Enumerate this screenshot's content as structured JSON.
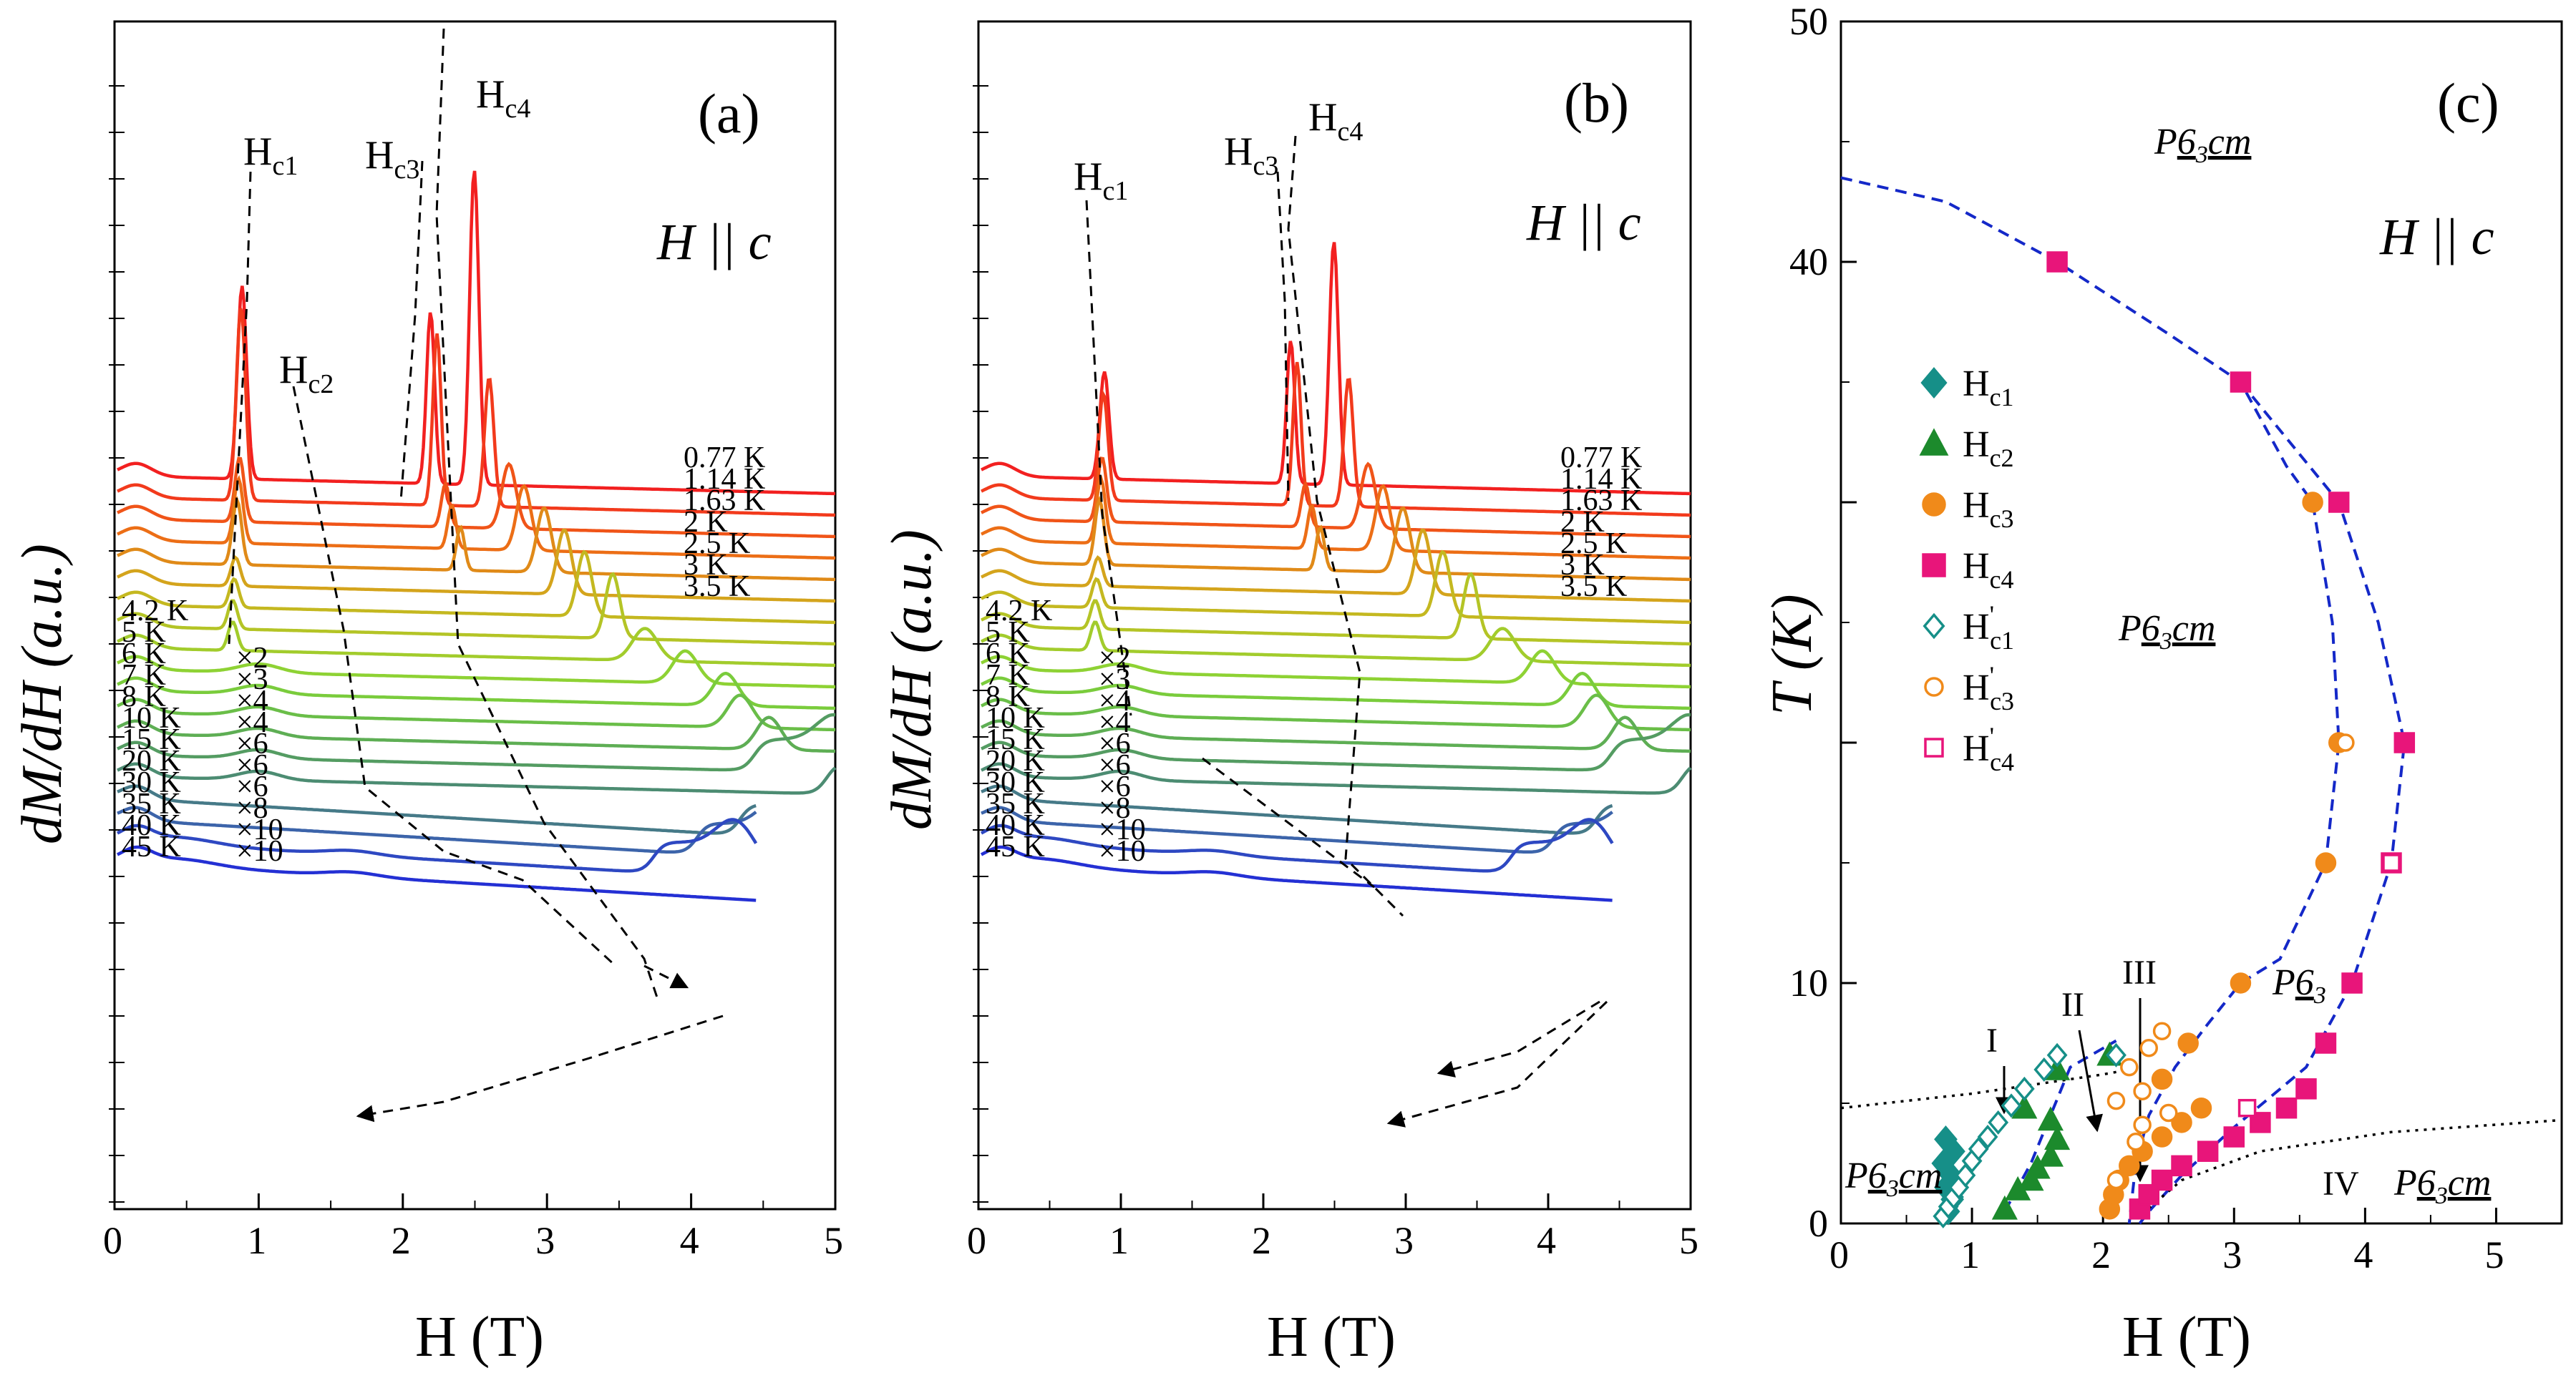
{
  "chart_data": [
    {
      "panel": "(a)",
      "type": "line",
      "title": "",
      "xlabel": "H (T)",
      "ylabel": "dM/dH (a.u.)",
      "xlim": [
        0,
        5
      ],
      "xticks": [
        "0",
        "1",
        "2",
        "3",
        "4",
        "5"
      ],
      "orientation_label": "H || c",
      "transition_labels": [
        "Hc1",
        "Hc2",
        "Hc3",
        "Hc4"
      ],
      "series": [
        {
          "name": "0.77 K",
          "multiplier": "",
          "color": "#f22020"
        },
        {
          "name": "1.14 K",
          "multiplier": "",
          "color": "#f23a1c"
        },
        {
          "name": "1.63 K",
          "multiplier": "",
          "color": "#f05418"
        },
        {
          "name": "2 K",
          "multiplier": "",
          "color": "#ec6e16"
        },
        {
          "name": "2.5 K",
          "multiplier": "",
          "color": "#e08a18"
        },
        {
          "name": "3 K",
          "multiplier": "",
          "color": "#d4a41c"
        },
        {
          "name": "3.5 K",
          "multiplier": "",
          "color": "#c4b820"
        },
        {
          "name": "4.2 K",
          "multiplier": "",
          "color": "#b4c426"
        },
        {
          "name": "5 K",
          "multiplier": "",
          "color": "#a2cc2c"
        },
        {
          "name": "6 K",
          "multiplier": "×2",
          "color": "#8ed234"
        },
        {
          "name": "7 K",
          "multiplier": "×3",
          "color": "#7acc3c"
        },
        {
          "name": "8 K",
          "multiplier": "×4",
          "color": "#6abe48"
        },
        {
          "name": "10 K",
          "multiplier": "×4",
          "color": "#5eae54"
        },
        {
          "name": "15 K",
          "multiplier": "×6",
          "color": "#549c62"
        },
        {
          "name": "20 K",
          "multiplier": "×6",
          "color": "#4c8c72"
        },
        {
          "name": "30 K",
          "multiplier": "×6",
          "color": "#467a88"
        },
        {
          "name": "35 K",
          "multiplier": "×8",
          "color": "#3c64aa"
        },
        {
          "name": "40 K",
          "multiplier": "×10",
          "color": "#2e48c2"
        },
        {
          "name": "45 K",
          "multiplier": "×10",
          "color": "#2430d4"
        }
      ]
    },
    {
      "panel": "(b)",
      "type": "line",
      "title": "",
      "xlabel": "H (T)",
      "ylabel": "dM/dH (a.u.)",
      "xlim": [
        0,
        5
      ],
      "xticks": [
        "0",
        "1",
        "2",
        "3",
        "4",
        "5"
      ],
      "orientation_label": "H || c",
      "transition_labels": [
        "Hc1",
        "Hc3",
        "Hc4"
      ],
      "series": [
        {
          "name": "0.77 K",
          "multiplier": "",
          "color": "#f22020"
        },
        {
          "name": "1.14 K",
          "multiplier": "",
          "color": "#f23a1c"
        },
        {
          "name": "1.63 K",
          "multiplier": "",
          "color": "#f05418"
        },
        {
          "name": "2 K",
          "multiplier": "",
          "color": "#ec6e16"
        },
        {
          "name": "2.5 K",
          "multiplier": "",
          "color": "#e08a18"
        },
        {
          "name": "3 K",
          "multiplier": "",
          "color": "#d4a41c"
        },
        {
          "name": "3.5 K",
          "multiplier": "",
          "color": "#c4b820"
        },
        {
          "name": "4.2 K",
          "multiplier": "",
          "color": "#b4c426"
        },
        {
          "name": "5 K",
          "multiplier": "",
          "color": "#a2cc2c"
        },
        {
          "name": "6 K",
          "multiplier": "×2",
          "color": "#8ed234"
        },
        {
          "name": "7 K",
          "multiplier": "×3",
          "color": "#7acc3c"
        },
        {
          "name": "8 K",
          "multiplier": "×4",
          "color": "#6abe48"
        },
        {
          "name": "10 K",
          "multiplier": "×4",
          "color": "#5eae54"
        },
        {
          "name": "15 K",
          "multiplier": "×6",
          "color": "#549c62"
        },
        {
          "name": "20 K",
          "multiplier": "×6",
          "color": "#4c8c72"
        },
        {
          "name": "30 K",
          "multiplier": "×6",
          "color": "#467a88"
        },
        {
          "name": "35 K",
          "multiplier": "×8",
          "color": "#3c64aa"
        },
        {
          "name": "40 K",
          "multiplier": "×10",
          "color": "#2e48c2"
        },
        {
          "name": "45 K",
          "multiplier": "×10",
          "color": "#2430d4"
        }
      ]
    },
    {
      "panel": "(c)",
      "type": "scatter",
      "title": "",
      "xlabel": "H (T)",
      "ylabel": "T (K)",
      "xlim": [
        0,
        5.5
      ],
      "ylim": [
        0,
        50
      ],
      "xticks": [
        "0",
        "1",
        "2",
        "3",
        "4",
        "5"
      ],
      "yticks": [
        "0",
        "10",
        "40",
        "50"
      ],
      "orientation_label": "H || c",
      "phase_labels": [
        "P63cm",
        "P63cm",
        "P63",
        "P63cm",
        "P63cm",
        "I",
        "II",
        "III",
        "IV"
      ],
      "series": [
        {
          "name": "Hc1",
          "marker": "diamond",
          "filled": true,
          "color": "#168f88",
          "points": [
            [
              0.82,
              0.5
            ],
            [
              0.85,
              1.0
            ],
            [
              0.8,
              1.5
            ],
            [
              0.84,
              2.0
            ],
            [
              0.78,
              2.5
            ],
            [
              0.86,
              3.0
            ],
            [
              0.8,
              3.5
            ]
          ]
        },
        {
          "name": "Hc2",
          "marker": "triangle",
          "filled": true,
          "color": "#1c8a2c",
          "points": [
            [
              1.25,
              0.6
            ],
            [
              1.35,
              1.4
            ],
            [
              1.45,
              1.8
            ],
            [
              1.5,
              2.3
            ],
            [
              1.6,
              2.8
            ],
            [
              1.65,
              3.5
            ],
            [
              1.6,
              4.3
            ],
            [
              1.4,
              4.8
            ],
            [
              1.65,
              6.4
            ],
            [
              2.05,
              7.0
            ]
          ]
        },
        {
          "name": "Hc3",
          "marker": "circle",
          "filled": true,
          "color": "#f08a1a",
          "points": [
            [
              2.05,
              0.6
            ],
            [
              2.08,
              1.2
            ],
            [
              2.12,
              1.8
            ],
            [
              2.2,
              2.4
            ],
            [
              2.3,
              3.0
            ],
            [
              2.45,
              3.6
            ],
            [
              2.6,
              4.2
            ],
            [
              2.75,
              4.8
            ],
            [
              2.45,
              6.0
            ],
            [
              2.65,
              7.5
            ],
            [
              3.05,
              10.0
            ],
            [
              3.7,
              15.0
            ],
            [
              3.8,
              20.0
            ],
            [
              3.6,
              30.0
            ]
          ]
        },
        {
          "name": "Hc4",
          "marker": "square",
          "filled": true,
          "color": "#e8157a",
          "points": [
            [
              2.28,
              0.6
            ],
            [
              2.35,
              1.2
            ],
            [
              2.45,
              1.8
            ],
            [
              2.6,
              2.4
            ],
            [
              2.8,
              3.0
            ],
            [
              3.0,
              3.6
            ],
            [
              3.2,
              4.2
            ],
            [
              3.4,
              4.8
            ],
            [
              3.55,
              5.6
            ],
            [
              3.7,
              7.5
            ],
            [
              3.9,
              10.0
            ],
            [
              4.2,
              15.0
            ],
            [
              4.3,
              20.0
            ],
            [
              3.8,
              30.0
            ],
            [
              3.05,
              35.0
            ],
            [
              1.65,
              40.0
            ]
          ]
        },
        {
          "name": "H'c1",
          "marker": "diamond",
          "filled": false,
          "color": "#168f88",
          "points": [
            [
              0.78,
              0.3
            ],
            [
              0.82,
              0.7
            ],
            [
              0.86,
              1.1
            ],
            [
              0.9,
              1.5
            ],
            [
              0.95,
              2.0
            ],
            [
              1.0,
              2.6
            ],
            [
              1.05,
              3.1
            ],
            [
              1.12,
              3.6
            ],
            [
              1.2,
              4.2
            ],
            [
              1.3,
              4.9
            ],
            [
              1.4,
              5.6
            ],
            [
              1.55,
              6.4
            ],
            [
              1.65,
              7.0
            ],
            [
              2.1,
              7.0
            ]
          ]
        },
        {
          "name": "H'c3",
          "marker": "circle",
          "filled": false,
          "color": "#f08a1a",
          "points": [
            [
              2.1,
              1.8
            ],
            [
              2.25,
              3.4
            ],
            [
              2.3,
              4.1
            ],
            [
              2.5,
              4.6
            ],
            [
              2.1,
              5.1
            ],
            [
              2.3,
              5.5
            ],
            [
              2.2,
              6.5
            ],
            [
              2.35,
              7.3
            ],
            [
              2.45,
              8.0
            ],
            [
              3.85,
              20.0
            ]
          ]
        },
        {
          "name": "H'c4",
          "marker": "square",
          "filled": false,
          "color": "#e8157a",
          "points": [
            [
              3.1,
              4.8
            ],
            [
              4.2,
              15.0
            ]
          ]
        }
      ]
    }
  ],
  "labels": {
    "panel_a": "(a)",
    "panel_b": "(b)",
    "panel_c": "(c)",
    "h_par_c": "H || c",
    "x_axis": "H (T)",
    "y_axis_ab": "dM/dH (a.u.)",
    "y_axis_c": "T (K)",
    "phase_i": "I",
    "phase_ii": "II",
    "phase_iii": "III",
    "phase_iv": "IV"
  }
}
